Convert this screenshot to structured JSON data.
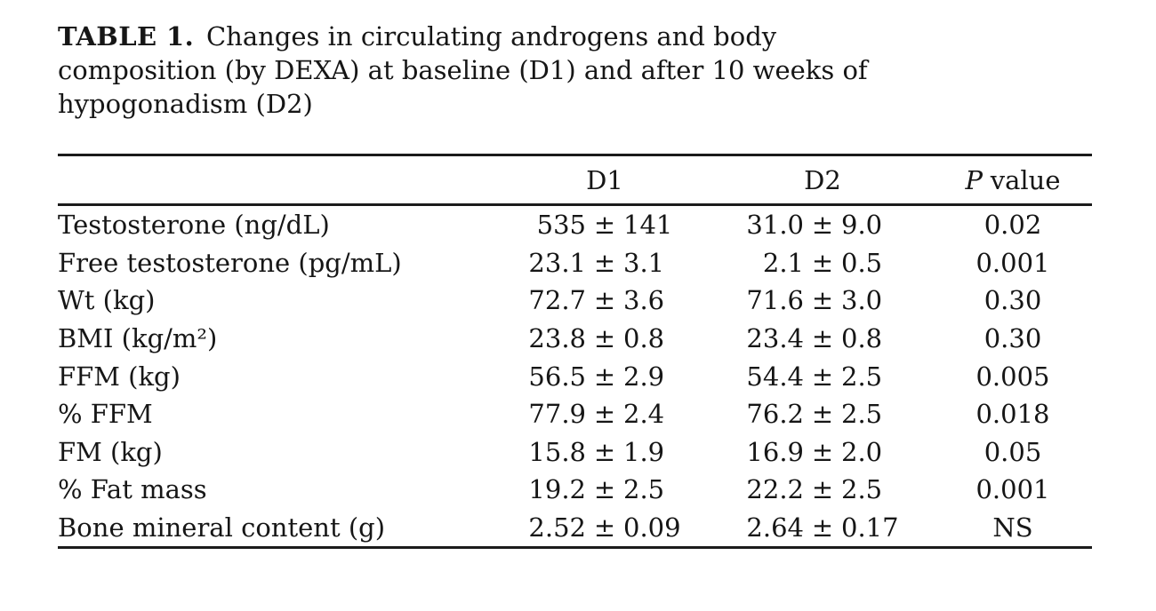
{
  "meta": {
    "background_color": "#ffffff",
    "text_color": "#161616",
    "rule_color": "#1b1b1b"
  },
  "caption": {
    "label": "TABLE 1.",
    "line1": "Changes in circulating androgens and body",
    "line2": "composition (by DEXA) at baseline (D1) and after 10 weeks of",
    "line3": "hypogonadism (D2)"
  },
  "table": {
    "header": {
      "d1": "D1",
      "d2": "D2",
      "p_symbol": "P",
      "p_word": "value"
    },
    "symbols": {
      "plus_minus": "±"
    },
    "rows": [
      {
        "label": "Testosterone (ng/dL)",
        "d1_mean": "535",
        "d1_sd": "141",
        "d2_mean": "31.0",
        "d2_sd": "9.0",
        "p": "0.02"
      },
      {
        "label": "Free testosterone (pg/mL)",
        "d1_mean": "23.1",
        "d1_sd": "3.1",
        "d2_mean": "2.1",
        "d2_sd": "0.5",
        "p": "0.001"
      },
      {
        "label": "Wt (kg)",
        "d1_mean": "72.7",
        "d1_sd": "3.6",
        "d2_mean": "71.6",
        "d2_sd": "3.0",
        "p": "0.30"
      },
      {
        "label": "BMI (kg/m²)",
        "d1_mean": "23.8",
        "d1_sd": "0.8",
        "d2_mean": "23.4",
        "d2_sd": "0.8",
        "p": "0.30"
      },
      {
        "label": "FFM (kg)",
        "d1_mean": "56.5",
        "d1_sd": "2.9",
        "d2_mean": "54.4",
        "d2_sd": "2.5",
        "p": "0.005"
      },
      {
        "label": "% FFM",
        "d1_mean": "77.9",
        "d1_sd": "2.4",
        "d2_mean": "76.2",
        "d2_sd": "2.5",
        "p": "0.018"
      },
      {
        "label": "FM (kg)",
        "d1_mean": "15.8",
        "d1_sd": "1.9",
        "d2_mean": "16.9",
        "d2_sd": "2.0",
        "p": "0.05"
      },
      {
        "label": "% Fat mass",
        "d1_mean": "19.2",
        "d1_sd": "2.5",
        "d2_mean": "22.2",
        "d2_sd": "2.5",
        "p": "0.001"
      },
      {
        "label": "Bone mineral content (g)",
        "d1_mean": "2.52",
        "d1_sd": "0.09",
        "d2_mean": "2.64",
        "d2_sd": "0.17",
        "p": "NS"
      }
    ]
  }
}
